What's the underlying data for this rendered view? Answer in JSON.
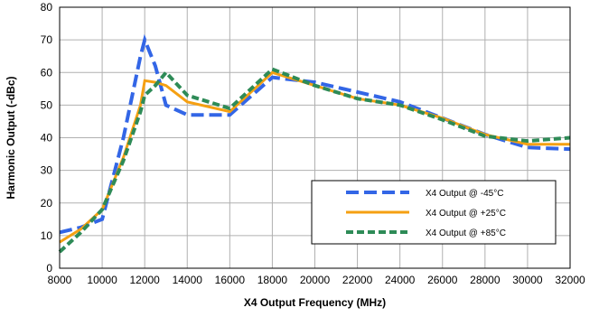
{
  "chart_data": {
    "type": "line",
    "xlabel": "X4 Output Frequency (MHz)",
    "ylabel": "Harmonic Output (-dBc)",
    "xlim": [
      8000,
      32000
    ],
    "ylim": [
      0,
      80
    ],
    "x_ticks": [
      8000,
      10000,
      12000,
      14000,
      16000,
      18000,
      20000,
      22000,
      24000,
      26000,
      28000,
      30000,
      32000
    ],
    "y_ticks": [
      0,
      10,
      20,
      30,
      40,
      50,
      60,
      70,
      80
    ],
    "grid": true,
    "legend_position": "lower-right",
    "series": [
      {
        "name": "X4 Output @ -45°C",
        "color": "#3366e6",
        "style": "dashed",
        "x": [
          8000,
          9000,
          10000,
          11000,
          11800,
          12000,
          12500,
          13000,
          14000,
          16000,
          18000,
          20000,
          22000,
          24000,
          26000,
          28000,
          30000,
          32000
        ],
        "y": [
          11,
          12.5,
          15,
          40,
          65,
          70,
          62,
          50,
          47,
          47,
          58.5,
          57,
          54,
          51,
          46,
          41,
          37,
          36.5
        ]
      },
      {
        "name": "X4 Output @ +25°C",
        "color": "#f5a012",
        "style": "solid",
        "x": [
          8000,
          9000,
          10000,
          11000,
          11800,
          12000,
          12500,
          13000,
          14000,
          16000,
          18000,
          20000,
          22000,
          24000,
          26000,
          28000,
          30000,
          32000
        ],
        "y": [
          8,
          12,
          18,
          34,
          50,
          57.5,
          57,
          56,
          51,
          48,
          60,
          56,
          52,
          50,
          46,
          41,
          38,
          38
        ]
      },
      {
        "name": "X4 Output @ +85°C",
        "color": "#2e8b57",
        "style": "dashed",
        "x": [
          8000,
          9000,
          10000,
          11000,
          11800,
          12000,
          12500,
          13000,
          14000,
          16000,
          18000,
          20000,
          22000,
          24000,
          26000,
          28000,
          30000,
          32000
        ],
        "y": [
          5,
          11,
          18,
          33,
          48,
          53,
          56,
          60,
          53,
          49,
          61,
          56,
          52,
          50,
          45.5,
          40.5,
          39,
          40
        ]
      }
    ]
  }
}
